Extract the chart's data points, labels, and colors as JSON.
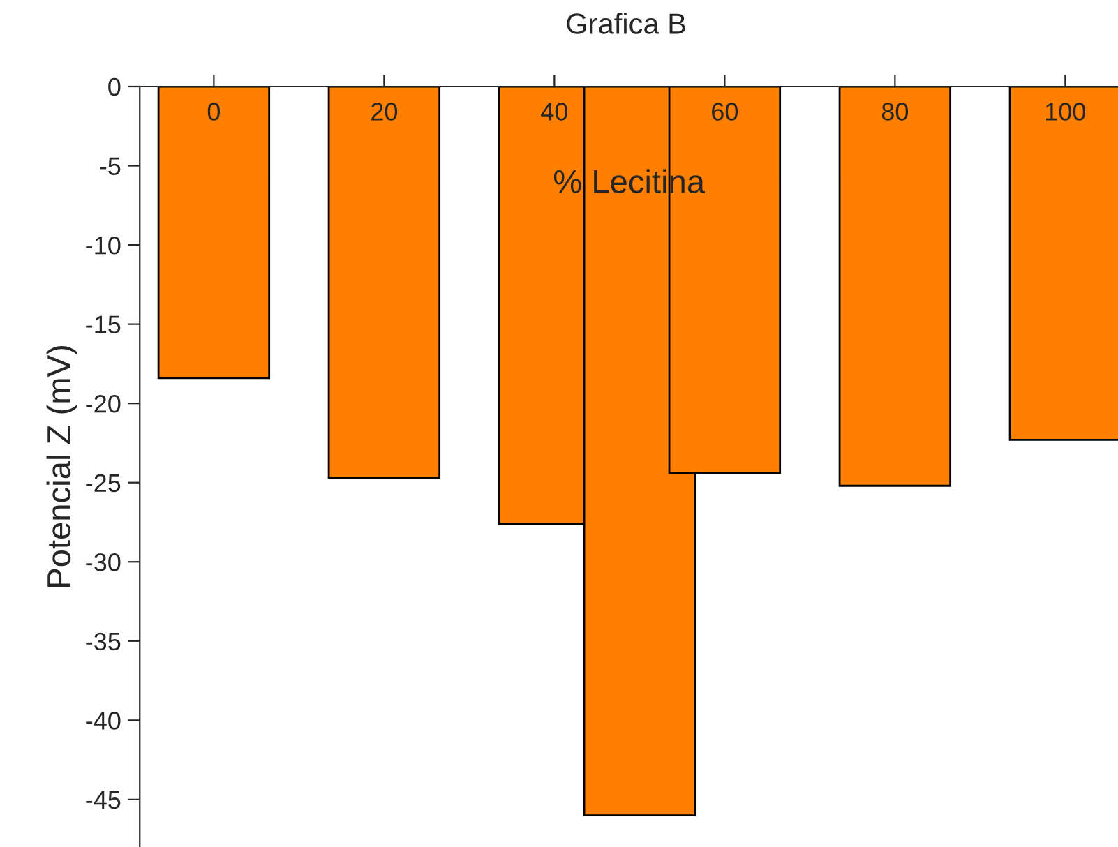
{
  "chart_data": {
    "type": "bar",
    "title": "Grafica B",
    "xlabel": "% Lecitina",
    "ylabel": "Potencial Z (mV)",
    "x": [
      0,
      20,
      40,
      50,
      60,
      80,
      100
    ],
    "series": [
      {
        "color": "#ff8000",
        "values": [
          -18.4,
          -24.7,
          -27.6,
          -46.0,
          -24.4,
          -25.2,
          -22.3
        ]
      }
    ],
    "xlim": [
      -8.7,
      106.2
    ],
    "xticks": [
      0,
      20,
      40,
      60,
      80,
      100
    ],
    "ylim": [
      -48,
      0
    ],
    "yticks": [
      0,
      -5,
      -10,
      -15,
      -20,
      -25,
      -30,
      -35,
      -40,
      -45
    ],
    "grid": false,
    "legend": false
  }
}
